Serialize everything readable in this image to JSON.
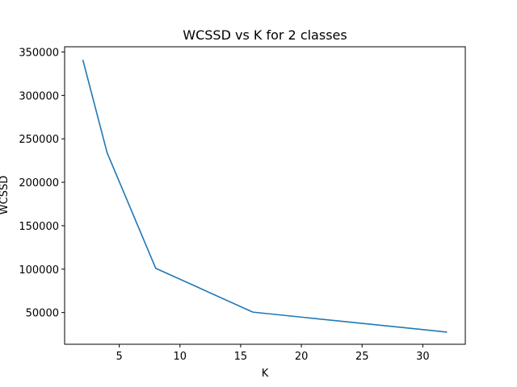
{
  "chart_data": {
    "type": "line",
    "title": "WCSSD vs K for 2 classes",
    "xlabel": "K",
    "ylabel": "WCSSD",
    "xlim": [
      0.5,
      33.5
    ],
    "ylim": [
      13500,
      356000
    ],
    "xticks": [
      5,
      10,
      15,
      20,
      25,
      30
    ],
    "yticks": [
      50000,
      100000,
      150000,
      200000,
      250000,
      300000,
      350000
    ],
    "grid": false,
    "legend": "none",
    "series": [
      {
        "color": "#1f77b4",
        "x": [
          2,
          4,
          8,
          16,
          32
        ],
        "y": [
          341000,
          234000,
          101000,
          50500,
          27500
        ]
      }
    ]
  }
}
